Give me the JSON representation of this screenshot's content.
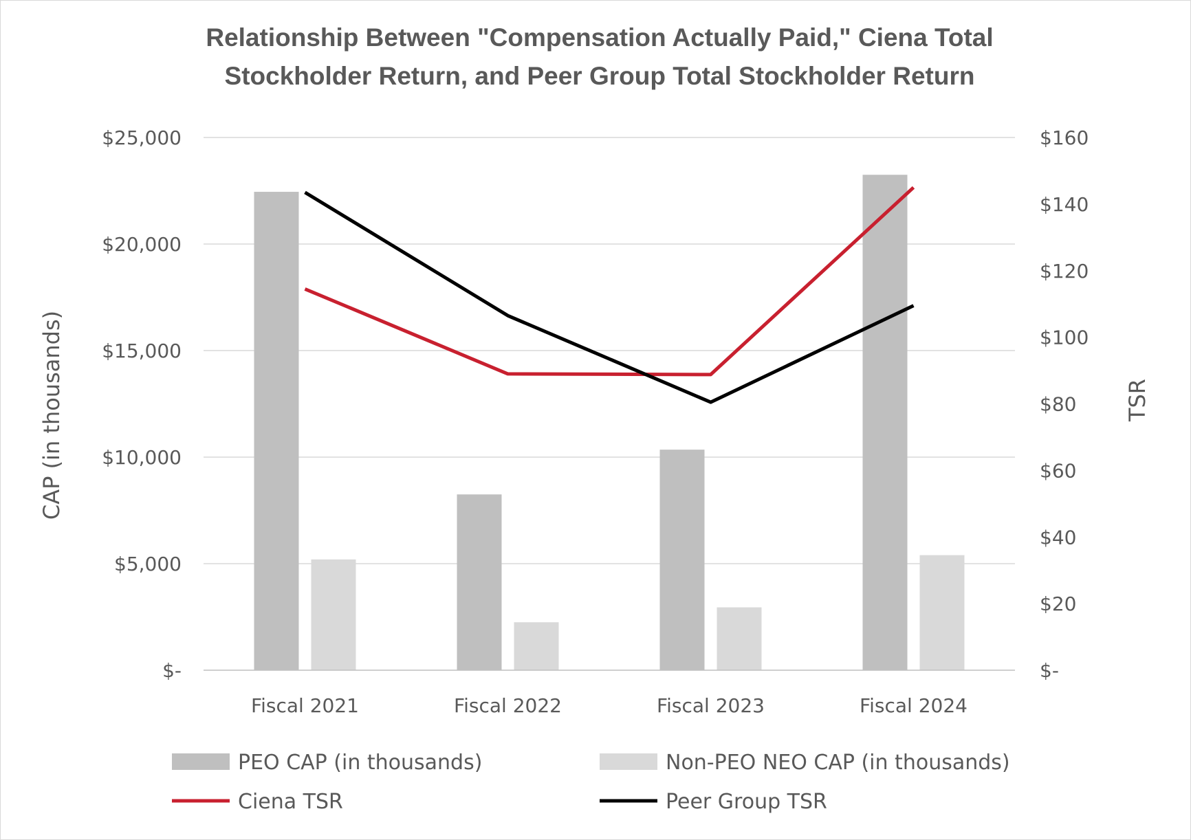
{
  "chart_data": {
    "type": "bar",
    "title_lines": [
      "Relationship Between \"Compensation Actually Paid,\" Ciena Total",
      "Stockholder Return, and Peer Group Total Stockholder Return"
    ],
    "categories": [
      "Fiscal 2021",
      "Fiscal 2022",
      "Fiscal 2023",
      "Fiscal 2024"
    ],
    "ylabel": "CAP (in thousands)",
    "y2label": "TSR",
    "ylim": [
      0,
      25000
    ],
    "y2lim": [
      0,
      160
    ],
    "y_ticks": [
      {
        "value": 0,
        "label": "$-"
      },
      {
        "value": 5000,
        "label": "$5,000"
      },
      {
        "value": 10000,
        "label": "$10,000"
      },
      {
        "value": 15000,
        "label": "$15,000"
      },
      {
        "value": 20000,
        "label": "$20,000"
      },
      {
        "value": 25000,
        "label": "$25,000"
      }
    ],
    "y2_ticks": [
      {
        "value": 0,
        "label": "$-"
      },
      {
        "value": 20,
        "label": "$20"
      },
      {
        "value": 40,
        "label": "$40"
      },
      {
        "value": 60,
        "label": "$60"
      },
      {
        "value": 80,
        "label": "$80"
      },
      {
        "value": 100,
        "label": "$100"
      },
      {
        "value": 120,
        "label": "$120"
      },
      {
        "value": 140,
        "label": "$140"
      },
      {
        "value": 160,
        "label": "$160"
      }
    ],
    "grid": true,
    "bar_series": [
      {
        "name": "PEO CAP (in thousands)",
        "color": "#bfbfbf",
        "values": [
          22450,
          8250,
          10350,
          23250
        ]
      },
      {
        "name": "Non-PEO NEO CAP (in thousands)",
        "color": "#d9d9d9",
        "values": [
          5200,
          2250,
          2950,
          5400
        ]
      }
    ],
    "line_series": [
      {
        "name": "Ciena TSR",
        "color": "#c8202f",
        "axis": "right",
        "values": [
          114.5,
          89,
          88.8,
          145
        ]
      },
      {
        "name": "Peer Group TSR",
        "color": "#000000",
        "axis": "right",
        "values": [
          143.5,
          106.5,
          80.5,
          109.5
        ]
      }
    ],
    "legend": {
      "placement": "bottom",
      "items": [
        {
          "label": "PEO CAP (in thousands)",
          "kind": "bar",
          "color": "#bfbfbf"
        },
        {
          "label": "Non-PEO NEO CAP (in thousands)",
          "kind": "bar",
          "color": "#d9d9d9"
        },
        {
          "label": "Ciena TSR",
          "kind": "line",
          "color": "#c8202f"
        },
        {
          "label": "Peer Group TSR",
          "kind": "line",
          "color": "#000000"
        }
      ]
    }
  }
}
